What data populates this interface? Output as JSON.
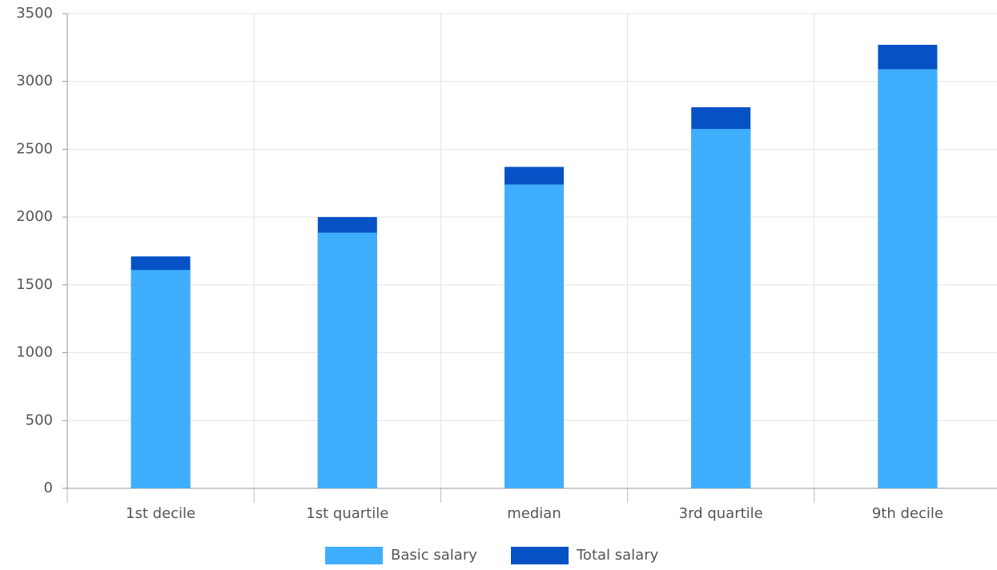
{
  "chart_data": {
    "type": "bar",
    "categories": [
      "1st decile",
      "1st quartile",
      "median",
      "3rd quartile",
      "9th decile"
    ],
    "series": [
      {
        "name": "Basic salary",
        "color": "#40aeff",
        "values": [
          1610,
          1885,
          2240,
          2650,
          3090
        ]
      },
      {
        "name": "Total salary",
        "color": "#0652c5",
        "values": [
          1710,
          2000,
          2370,
          2810,
          3270
        ]
      }
    ],
    "ylim": [
      0,
      3500
    ],
    "yticks": [
      0,
      500,
      1000,
      1500,
      2000,
      2500,
      3000,
      3500
    ],
    "grid": true,
    "legend": "bottom"
  }
}
